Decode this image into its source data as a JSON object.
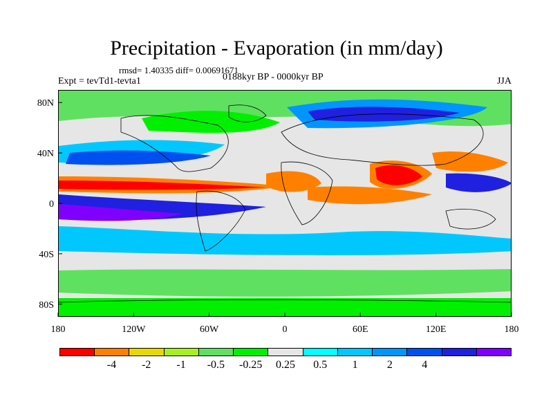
{
  "title": "Precipitation - Evaporation (in mm/day)",
  "stats": "rmsd= 1.40335 diff= 0.00691671",
  "experiment": "Expt = tevTd1-tevta1",
  "period": "0188kyr BP - 0000kyr BP",
  "season": "JJA",
  "map": {
    "projection": "cylindrical equidistant",
    "lon_range": [
      -180,
      180
    ],
    "lat_range": [
      -90,
      90
    ],
    "background_color": "#e6e6e6",
    "y_ticks": [
      {
        "lat": 80,
        "label": "80N"
      },
      {
        "lat": 40,
        "label": "40N"
      },
      {
        "lat": 0,
        "label": "0"
      },
      {
        "lat": -40,
        "label": "40S"
      },
      {
        "lat": -80,
        "label": "80S"
      }
    ],
    "x_ticks": [
      {
        "lon": -180,
        "label": "180"
      },
      {
        "lon": -120,
        "label": "120W"
      },
      {
        "lon": -60,
        "label": "60W"
      },
      {
        "lon": 0,
        "label": "0"
      },
      {
        "lon": 60,
        "label": "60E"
      },
      {
        "lon": 120,
        "label": "120E"
      },
      {
        "lon": 180,
        "label": "180"
      }
    ],
    "coastline_color": "#000000"
  },
  "colorbar": {
    "colors": [
      "#ff0000",
      "#ff8000",
      "#e6d800",
      "#a6f020",
      "#60e060",
      "#00f000",
      "#e6e6e6",
      "#00ffff",
      "#00c8ff",
      "#0096ff",
      "#0050f0",
      "#2020e0",
      "#8000ff"
    ],
    "labels": [
      "-4",
      "-2",
      "-1",
      "-0.5",
      "-0.25",
      "0.25",
      "0.5",
      "1",
      "2",
      "4"
    ]
  }
}
